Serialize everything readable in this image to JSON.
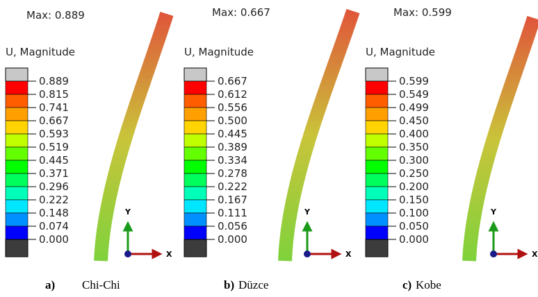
{
  "panels": [
    {
      "max": "Max: 0.889",
      "legend_title": "U, Magnitude",
      "legend_labels": [
        "0.889",
        "0.815",
        "0.741",
        "0.667",
        "0.593",
        "0.519",
        "0.445",
        "0.371",
        "0.296",
        "0.222",
        "0.148",
        "0.074",
        "0.000"
      ],
      "axis_y": "Y",
      "axis_x": "X",
      "caption_letter": "a)",
      "caption": "Chi-Chi"
    },
    {
      "max": "Max: 0.667",
      "legend_title": "U, Magnitude",
      "legend_labels": [
        "0.667",
        "0.612",
        "0.556",
        "0.500",
        "0.445",
        "0.389",
        "0.334",
        "0.278",
        "0.222",
        "0.167",
        "0.111",
        "0.056",
        "0.000"
      ],
      "axis_y": "Y",
      "axis_x": "X",
      "caption_letter": "b)",
      "caption": "Düzce"
    },
    {
      "max": "Max: 0.599",
      "legend_title": "U, Magnitude",
      "legend_labels": [
        "0.599",
        "0.549",
        "0.499",
        "0.450",
        "0.400",
        "0.350",
        "0.300",
        "0.250",
        "0.200",
        "0.150",
        "0.100",
        "0.050",
        "0.000"
      ],
      "axis_y": "Y",
      "axis_x": "X",
      "caption_letter": "c)",
      "caption": "Kobe"
    }
  ]
}
